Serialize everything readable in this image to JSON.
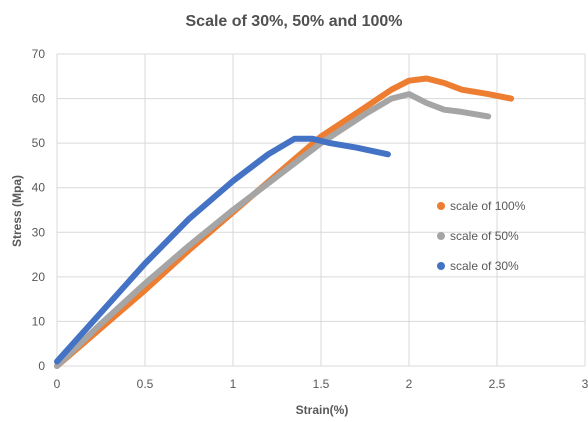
{
  "chart_data": {
    "type": "line",
    "title": "Scale of 30%, 50% and 100%",
    "xlabel": "Strain(%)",
    "ylabel": "Stress (Mpa)",
    "xlim": [
      0,
      3
    ],
    "ylim": [
      0,
      70
    ],
    "x_ticks": [
      "0",
      "0.5",
      "1",
      "1.5",
      "2",
      "2.5",
      "3"
    ],
    "y_ticks": [
      "0",
      "10",
      "20",
      "30",
      "40",
      "50",
      "60",
      "70"
    ],
    "grid": true,
    "legend_position": "right",
    "series": [
      {
        "name": "scale of 100%",
        "color": "#ED7D31",
        "x": [
          0,
          0.25,
          0.5,
          0.75,
          1.0,
          1.25,
          1.5,
          1.75,
          1.9,
          2.0,
          2.1,
          2.2,
          2.3,
          2.45,
          2.58
        ],
        "y": [
          0,
          8.5,
          17,
          26,
          34.5,
          43,
          51.5,
          58,
          62,
          64,
          64.5,
          63.5,
          62,
          61,
          60
        ]
      },
      {
        "name": "scale of 50%",
        "color": "#A5A5A5",
        "x": [
          0,
          0.25,
          0.5,
          0.75,
          1.0,
          1.25,
          1.5,
          1.75,
          1.9,
          2.0,
          2.1,
          2.2,
          2.3,
          2.45
        ],
        "y": [
          0,
          9.5,
          18.5,
          27,
          35,
          42.5,
          50,
          56.5,
          60,
          61,
          59,
          57.5,
          57,
          56
        ]
      },
      {
        "name": "scale of 30%",
        "color": "#4472C4",
        "x": [
          0,
          0.25,
          0.5,
          0.75,
          1.0,
          1.2,
          1.35,
          1.45,
          1.55,
          1.7,
          1.88
        ],
        "y": [
          1,
          12,
          23,
          33,
          41.5,
          47.5,
          51,
          51,
          50,
          49,
          47.5
        ]
      }
    ]
  }
}
